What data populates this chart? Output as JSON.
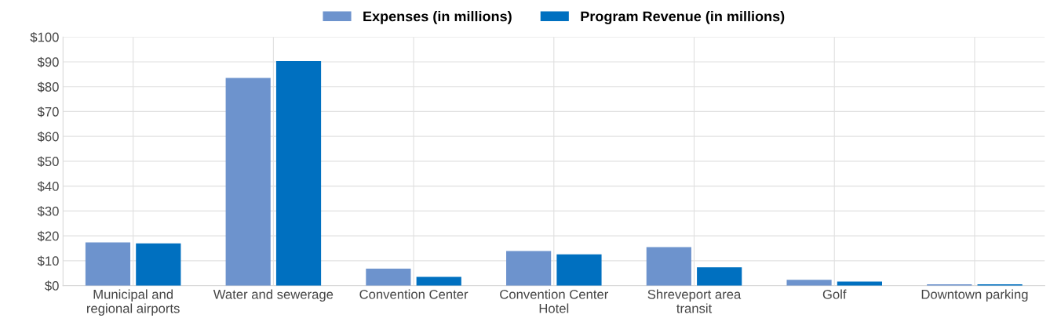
{
  "chart_data": {
    "type": "bar",
    "categories": [
      "Municipal and\nregional airports",
      "Water and sewerage",
      "Convention Center",
      "Convention Center\nHotel",
      "Shreveport area\ntransit",
      "Golf",
      "Downtown parking"
    ],
    "series": [
      {
        "name": "Expenses (in millions)",
        "color": "#6d93cd",
        "values": [
          17.4,
          83.5,
          6.8,
          13.9,
          15.5,
          2.3,
          0.5
        ]
      },
      {
        "name": "Program Revenue (in millions)",
        "color": "#0070c0",
        "values": [
          17.0,
          90.3,
          3.5,
          12.6,
          7.4,
          1.6,
          0.5
        ]
      }
    ],
    "ylim": [
      0,
      100
    ],
    "yticks": [
      {
        "value": 0,
        "label": "$0"
      },
      {
        "value": 10,
        "label": "$10"
      },
      {
        "value": 20,
        "label": "$20"
      },
      {
        "value": 30,
        "label": "$30"
      },
      {
        "value": 40,
        "label": "$40"
      },
      {
        "value": 50,
        "label": "$50"
      },
      {
        "value": 60,
        "label": "$60"
      },
      {
        "value": 70,
        "label": "$70"
      },
      {
        "value": 80,
        "label": "$80"
      },
      {
        "value": 90,
        "label": "$90"
      },
      {
        "value": 100,
        "label": "$100"
      }
    ],
    "grid": true,
    "legend": "top"
  }
}
